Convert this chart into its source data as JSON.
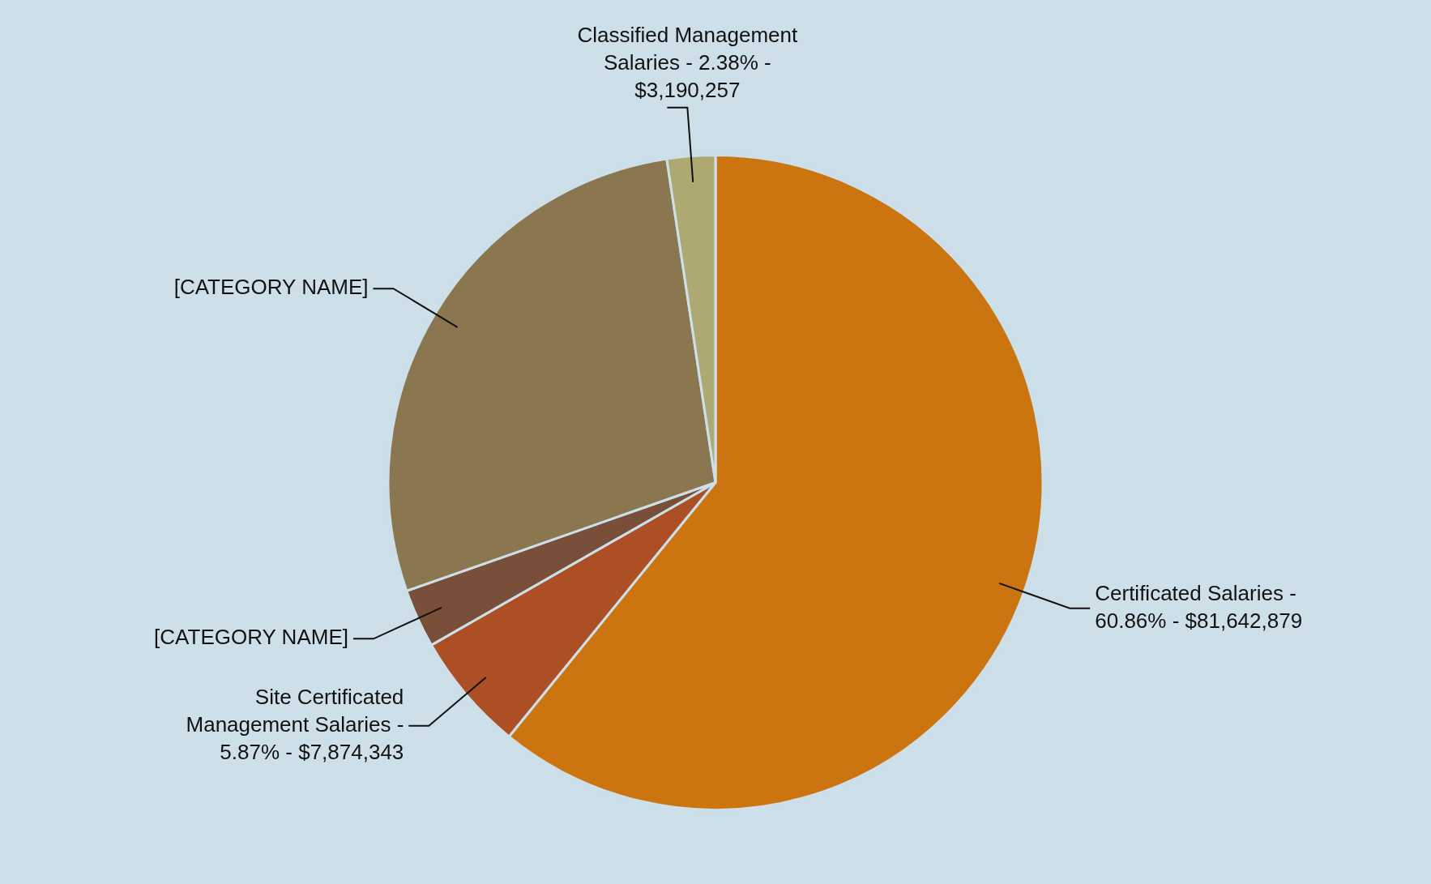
{
  "chart_data": {
    "type": "pie",
    "categories": [
      "Certificated Salaries - 60.86% - $81,642,879",
      "Site Certificated Management Salaries - 5.87% - $7,874,343",
      "[CATEGORY NAME]",
      "[CATEGORY NAME]",
      "Classified Management Salaries - 2.38% - $3,190,257"
    ],
    "values": [
      60.86,
      5.87,
      2.9,
      27.99,
      2.38
    ],
    "colors": [
      "#cc7510",
      "#ad4f25",
      "#7a4f3a",
      "#8a774f",
      "#aea873"
    ],
    "legend": false
  }
}
